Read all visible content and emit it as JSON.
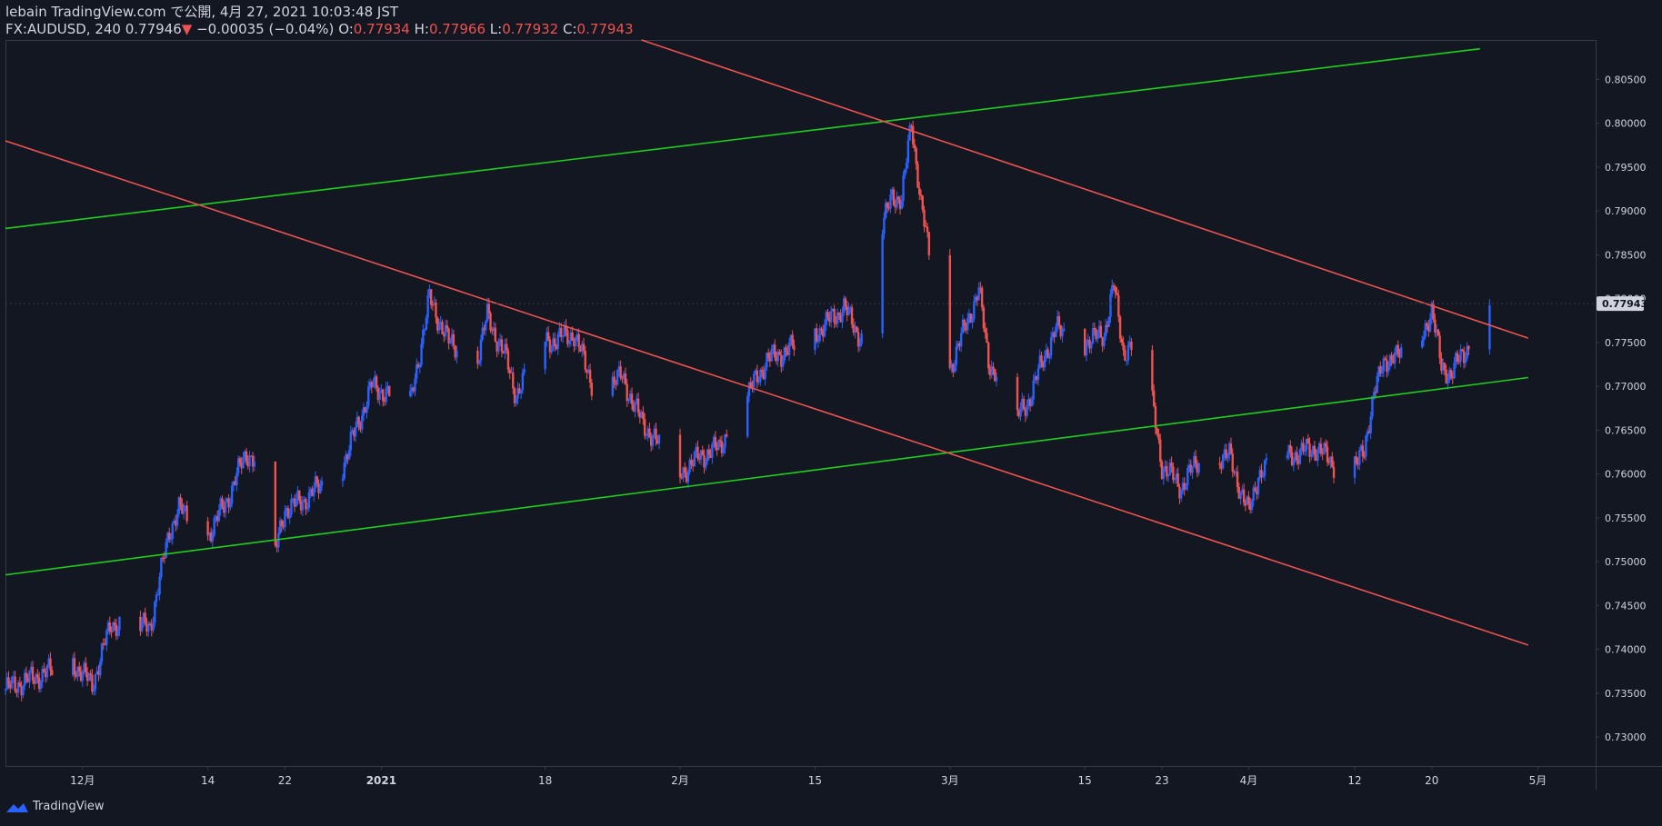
{
  "header": {
    "line1": "lebain TradingView.com で公開, 4月 27, 2021 10:03:48 JST",
    "symbol": "FX:AUDUSD, 240",
    "last": "0.77946",
    "down_arrow": "▼",
    "change": "−0.00035 (−0.04%)",
    "o_label": "O:",
    "o": "0.77934",
    "h_label": "H:",
    "h": "0.77966",
    "l_label": "L:",
    "l": "0.77932",
    "c_label": "C:",
    "c": "0.77943"
  },
  "footer": {
    "brand": "TradingView",
    "logo_icon": "tradingview-logo-icon"
  },
  "colors": {
    "background": "#131722",
    "up": "#2962ff",
    "down": "#ef5350",
    "trend_red": "#ef5350",
    "trend_green": "#1ed01e",
    "text": "#d1d4dc",
    "axis": "#787b86",
    "price_label_bg": "#d1d4dc"
  },
  "chart_data": {
    "type": "candlestick",
    "symbol": "FX:AUDUSD",
    "timeframe": "240",
    "ylim": [
      0.7267,
      0.8095
    ],
    "y_ticks": [
      "0.80500",
      "0.80000",
      "0.79500",
      "0.79000",
      "0.78500",
      "0.78000",
      "0.77500",
      "0.77000",
      "0.76500",
      "0.76000",
      "0.75500",
      "0.75000",
      "0.74500",
      "0.74000",
      "0.73500",
      "0.73000"
    ],
    "x_tick_labels": [
      {
        "label": "12月",
        "date": "2020-12-01"
      },
      {
        "label": "14",
        "date": "2020-12-14"
      },
      {
        "label": "22",
        "date": "2020-12-22"
      },
      {
        "label": "2021",
        "date": "2021-01-01"
      },
      {
        "label": "18",
        "date": "2021-01-18"
      },
      {
        "label": "2月",
        "date": "2021-02-01"
      },
      {
        "label": "15",
        "date": "2021-02-15"
      },
      {
        "label": "3月",
        "date": "2021-03-01"
      },
      {
        "label": "15",
        "date": "2021-03-15"
      },
      {
        "label": "23",
        "date": "2021-03-23"
      },
      {
        "label": "4月",
        "date": "2021-04-01"
      },
      {
        "label": "12",
        "date": "2021-04-12"
      },
      {
        "label": "20",
        "date": "2021-04-20"
      },
      {
        "label": "5月",
        "date": "2021-05-01"
      }
    ],
    "last_price_label": "0.77943",
    "price_path": [
      [
        "2020-11-23",
        0.7355
      ],
      [
        "2020-11-26",
        0.7368
      ],
      [
        "2020-11-30",
        0.7385
      ],
      [
        "2020-12-02",
        0.736
      ],
      [
        "2020-12-04",
        0.743
      ],
      [
        "2020-12-08",
        0.7425
      ],
      [
        "2020-12-10",
        0.7535
      ],
      [
        "2020-12-11",
        0.756
      ],
      [
        "2020-12-14",
        0.753
      ],
      [
        "2020-12-16",
        0.757
      ],
      [
        "2020-12-18",
        0.7625
      ],
      [
        "2020-12-20",
        0.76
      ],
      [
        "2020-12-21",
        0.751
      ],
      [
        "2020-12-22",
        0.756
      ],
      [
        "2020-12-24",
        0.757
      ],
      [
        "2020-12-28",
        0.761
      ],
      [
        "2020-12-31",
        0.77
      ],
      [
        "2021-01-04",
        0.768
      ],
      [
        "2021-01-06",
        0.78
      ],
      [
        "2021-01-08",
        0.775
      ],
      [
        "2021-01-11",
        0.7735
      ],
      [
        "2021-01-12",
        0.778
      ],
      [
        "2021-01-14",
        0.773
      ],
      [
        "2021-01-15",
        0.769
      ],
      [
        "2021-01-18",
        0.775
      ],
      [
        "2021-01-21",
        0.776
      ],
      [
        "2021-01-23",
        0.77
      ],
      [
        "2021-01-26",
        0.771
      ],
      [
        "2021-01-28",
        0.766
      ],
      [
        "2021-02-01",
        0.76
      ],
      [
        "2021-02-03",
        0.762
      ],
      [
        "2021-02-05",
        0.763
      ],
      [
        "2021-02-08",
        0.769
      ],
      [
        "2021-02-10",
        0.773
      ],
      [
        "2021-02-12",
        0.774
      ],
      [
        "2021-02-15",
        0.776
      ],
      [
        "2021-02-18",
        0.779
      ],
      [
        "2021-02-20",
        0.775
      ],
      [
        "2021-02-22",
        0.788
      ],
      [
        "2021-02-23",
        0.792
      ],
      [
        "2021-02-24",
        0.791
      ],
      [
        "2021-02-25",
        0.8005
      ],
      [
        "2021-02-26",
        0.7905
      ],
      [
        "2021-03-01",
        0.772
      ],
      [
        "2021-03-03",
        0.778
      ],
      [
        "2021-03-04",
        0.781
      ],
      [
        "2021-03-05",
        0.773
      ],
      [
        "2021-03-08",
        0.7665
      ],
      [
        "2021-03-09",
        0.768
      ],
      [
        "2021-03-11",
        0.774
      ],
      [
        "2021-03-12",
        0.7765
      ],
      [
        "2021-03-15",
        0.775
      ],
      [
        "2021-03-17",
        0.776
      ],
      [
        "2021-03-18",
        0.7815
      ],
      [
        "2021-03-19",
        0.774
      ],
      [
        "2021-03-21",
        0.775
      ],
      [
        "2021-03-23",
        0.761
      ],
      [
        "2021-03-25",
        0.7585
      ],
      [
        "2021-03-27",
        0.762
      ],
      [
        "2021-03-30",
        0.762
      ],
      [
        "2021-04-01",
        0.7555
      ],
      [
        "2021-04-02",
        0.76
      ],
      [
        "2021-04-05",
        0.762
      ],
      [
        "2021-04-08",
        0.763
      ],
      [
        "2021-04-10",
        0.761
      ],
      [
        "2021-04-13",
        0.762
      ],
      [
        "2021-04-14",
        0.77
      ],
      [
        "2021-04-16",
        0.774
      ],
      [
        "2021-04-18",
        0.772
      ],
      [
        "2021-04-20",
        0.779
      ],
      [
        "2021-04-21",
        0.772
      ],
      [
        "2021-04-22",
        0.7715
      ],
      [
        "2021-04-24",
        0.775
      ],
      [
        "2021-04-26",
        0.7795
      ]
    ],
    "trendlines": [
      {
        "color": "trend_green",
        "p1": [
          "2020-11-23",
          0.788
        ],
        "p2": [
          "2021-04-25",
          0.8085
        ]
      },
      {
        "color": "trend_green",
        "p1": [
          "2020-11-23",
          0.7485
        ],
        "p2": [
          "2021-04-30",
          0.771
        ]
      },
      {
        "color": "trend_red",
        "p1": [
          "2020-11-23",
          0.798
        ],
        "p2": [
          "2021-04-30",
          0.7405
        ]
      },
      {
        "color": "trend_red",
        "p1": [
          "2021-01-28",
          0.8095
        ],
        "p2": [
          "2021-04-30",
          0.7755
        ]
      }
    ]
  }
}
